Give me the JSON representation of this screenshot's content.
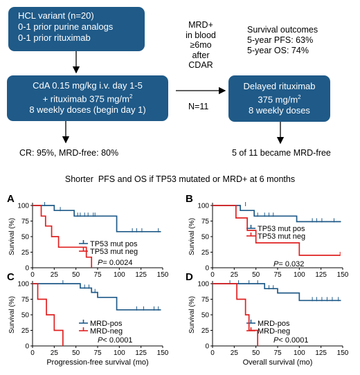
{
  "flow": {
    "box_inclusion": {
      "lines": [
        "HCL variant (n=20)",
        "0-1 prior purine analogs",
        "0-1 prior rituximab"
      ]
    },
    "box_treatment": {
      "line1": "CdA 0.15 mg/kg i.v. day 1-5",
      "line2_pre": "+ rituximab 375 mg/m",
      "line2_sup": "2",
      "line3": "8 weekly doses (begin day 1)"
    },
    "box_delayed": {
      "line1": "Delayed rituximab",
      "line2_pre": "375 mg/m",
      "line2_sup": "2",
      "line3": "8 weekly doses"
    },
    "mrd_condition": [
      "MRD+",
      "in blood",
      "≥6mo",
      "after",
      "CDAR"
    ],
    "n_label": "N=11",
    "survival_outcomes": [
      "Survival outcomes",
      "5-year PFS: 63%",
      "5-year OS: 74%"
    ],
    "cr_result": "CR: 95%, MRD-free: 80%",
    "mrd_free_result": "5 of 11 became MRD-free",
    "conclusion": "Shorter  PFS and OS if TP53 mutated or MRD+ at 6 months",
    "colors": {
      "box": "#1f5a88",
      "blue_curve": "#1f5a88",
      "red_curve": "#e02020"
    }
  },
  "chart_data": [
    {
      "panel": "A",
      "type": "line",
      "step": true,
      "ylabel": "Survival (%)",
      "xlabel": "",
      "xlim": [
        0,
        150
      ],
      "ylim": [
        0,
        100
      ],
      "xticks": [
        0,
        25,
        50,
        75,
        100,
        125,
        150
      ],
      "yticks": [
        0,
        25,
        50,
        75,
        100
      ],
      "series": [
        {
          "name": "TP53 mut pos",
          "color": "#1f5a88",
          "points": [
            [
              0,
              100
            ],
            [
              25,
              100
            ],
            [
              25,
              92
            ],
            [
              48,
              92
            ],
            [
              48,
              83
            ],
            [
              97,
              83
            ],
            [
              97,
              58
            ],
            [
              148,
              58
            ]
          ],
          "censors": [
            [
              14,
              100
            ],
            [
              32,
              92
            ],
            [
              52,
              83
            ],
            [
              55,
              83
            ],
            [
              60,
              83
            ],
            [
              64,
              83
            ],
            [
              70,
              83
            ],
            [
              72,
              83
            ],
            [
              115,
              58
            ],
            [
              120,
              58
            ],
            [
              126,
              58
            ],
            [
              145,
              58
            ]
          ]
        },
        {
          "name": "TP53 mut neg",
          "color": "#e02020",
          "points": [
            [
              0,
              100
            ],
            [
              10,
              100
            ],
            [
              10,
              83
            ],
            [
              15,
              83
            ],
            [
              15,
              67
            ],
            [
              22,
              67
            ],
            [
              22,
              50
            ],
            [
              30,
              50
            ],
            [
              30,
              33
            ],
            [
              62,
              33
            ],
            [
              62,
              17
            ],
            [
              68,
              17
            ],
            [
              68,
              0
            ]
          ],
          "censors": []
        }
      ],
      "annotation_italic": "P",
      "annotation_value": "= 0.0024"
    },
    {
      "panel": "B",
      "type": "line",
      "step": true,
      "ylabel": "Survival (%)",
      "xlabel": "",
      "xlim": [
        0,
        150
      ],
      "ylim": [
        0,
        100
      ],
      "xticks": [
        0,
        25,
        50,
        75,
        100,
        125,
        150
      ],
      "yticks": [
        0,
        25,
        50,
        75,
        100
      ],
      "series": [
        {
          "name": "TP53 mut pos",
          "color": "#1f5a88",
          "points": [
            [
              0,
              100
            ],
            [
              32,
              100
            ],
            [
              32,
              92
            ],
            [
              48,
              92
            ],
            [
              48,
              83
            ],
            [
              97,
              83
            ],
            [
              97,
              74
            ],
            [
              148,
              74
            ]
          ],
          "censors": [
            [
              38,
              100
            ],
            [
              52,
              83
            ],
            [
              60,
              83
            ],
            [
              65,
              83
            ],
            [
              70,
              83
            ],
            [
              115,
              74
            ],
            [
              120,
              74
            ],
            [
              126,
              74
            ],
            [
              140,
              74
            ]
          ]
        },
        {
          "name": "TP53 mut neg",
          "color": "#e02020",
          "points": [
            [
              0,
              100
            ],
            [
              27,
              100
            ],
            [
              27,
              80
            ],
            [
              40,
              80
            ],
            [
              40,
              60
            ],
            [
              50,
              60
            ],
            [
              50,
              40
            ],
            [
              100,
              40
            ],
            [
              100,
              20
            ],
            [
              147,
              20
            ]
          ],
          "censors": [
            [
              147,
              20
            ]
          ]
        }
      ],
      "annotation_italic": "P",
      "annotation_value": "= 0.032"
    },
    {
      "panel": "C",
      "type": "line",
      "step": true,
      "ylabel": "Survival (%)",
      "xlabel": "Progression-free survival (mo)",
      "xlim": [
        0,
        150
      ],
      "ylim": [
        0,
        100
      ],
      "xticks": [
        0,
        25,
        50,
        75,
        100,
        125,
        150
      ],
      "yticks": [
        0,
        25,
        50,
        75,
        100
      ],
      "series": [
        {
          "name": "MRD-pos",
          "color": "#1f5a88",
          "points": [
            [
              0,
              100
            ],
            [
              55,
              100
            ],
            [
              55,
              93
            ],
            [
              68,
              93
            ],
            [
              68,
              86
            ],
            [
              75,
              86
            ],
            [
              75,
              78
            ],
            [
              97,
              78
            ],
            [
              97,
              58
            ],
            [
              148,
              58
            ]
          ],
          "censors": [
            [
              35,
              100
            ],
            [
              60,
              93
            ],
            [
              65,
              93
            ],
            [
              72,
              86
            ],
            [
              120,
              58
            ],
            [
              128,
              58
            ],
            [
              140,
              58
            ],
            [
              145,
              58
            ]
          ]
        },
        {
          "name": "MRD-neg",
          "color": "#e02020",
          "points": [
            [
              0,
              100
            ],
            [
              6,
              100
            ],
            [
              6,
              75
            ],
            [
              16,
              75
            ],
            [
              16,
              50
            ],
            [
              25,
              50
            ],
            [
              25,
              25
            ],
            [
              35,
              25
            ],
            [
              35,
              0
            ]
          ],
          "censors": []
        }
      ],
      "annotation_italic": "P",
      "annotation_value": "< 0.0001"
    },
    {
      "panel": "D",
      "type": "line",
      "step": true,
      "ylabel": "Survival (%)",
      "xlabel": "Overall survival (mo)",
      "xlim": [
        0,
        150
      ],
      "ylim": [
        0,
        100
      ],
      "xticks": [
        0,
        25,
        50,
        75,
        100,
        125,
        150
      ],
      "yticks": [
        0,
        25,
        50,
        75,
        100
      ],
      "series": [
        {
          "name": "MRD-pos",
          "color": "#1f5a88",
          "points": [
            [
              0,
              100
            ],
            [
              60,
              100
            ],
            [
              60,
              92
            ],
            [
              75,
              92
            ],
            [
              75,
              85
            ],
            [
              100,
              85
            ],
            [
              100,
              73
            ],
            [
              148,
              73
            ]
          ],
          "censors": [
            [
              20,
              100
            ],
            [
              30,
              100
            ],
            [
              42,
              100
            ],
            [
              52,
              100
            ],
            [
              65,
              92
            ],
            [
              70,
              92
            ],
            [
              115,
              73
            ],
            [
              120,
              73
            ],
            [
              126,
              73
            ],
            [
              132,
              73
            ],
            [
              138,
              73
            ],
            [
              145,
              73
            ]
          ]
        },
        {
          "name": "MRD-neg",
          "color": "#e02020",
          "points": [
            [
              0,
              100
            ],
            [
              28,
              100
            ],
            [
              28,
              75
            ],
            [
              38,
              75
            ],
            [
              38,
              50
            ],
            [
              42,
              50
            ],
            [
              42,
              25
            ],
            [
              52,
              25
            ],
            [
              52,
              0
            ]
          ],
          "censors": []
        }
      ],
      "annotation_italic": "P",
      "annotation_value": "< 0.0001"
    }
  ]
}
